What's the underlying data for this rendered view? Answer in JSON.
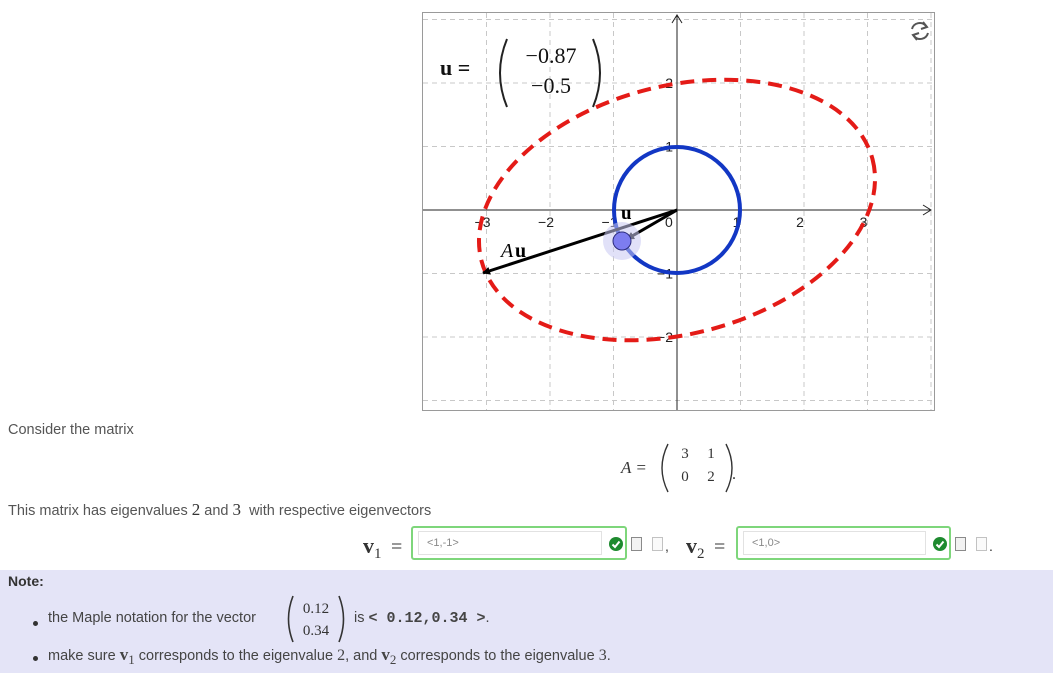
{
  "graph": {
    "axis_x_ticks": [
      "−3",
      "−2",
      "−1",
      "0",
      "1",
      "2",
      "3"
    ],
    "axis_y_ticks": [
      "2",
      "1",
      "−1",
      "−2"
    ],
    "u_label": "u =",
    "u_vector": [
      "−0.87",
      "−0.5"
    ],
    "vector_u_label": "u",
    "vector_Au_label": "Au",
    "colors": {
      "ellipse": "#e41b17",
      "circle": "#1237c4",
      "handle": "#7d7df0",
      "grid": "#c8c8c8"
    }
  },
  "content": {
    "consider_text": "Consider the matrix",
    "matrix_label": "A =",
    "matrix": [
      [
        "3",
        "1"
      ],
      [
        "0",
        "2"
      ]
    ],
    "matrix_suffix": ".",
    "eigen_text_1": "This matrix has eigenvalues",
    "eigen_val_1": "2",
    "eigen_and": "and",
    "eigen_val_2": "3",
    "eigen_text_2": "with respective eigenvectors",
    "v1_label": "v",
    "v1_sub": "1",
    "v1_eq": "=",
    "v1_value": "<1,-1>",
    "separator": ",",
    "v2_label": "v",
    "v2_sub": "2",
    "v2_eq": "=",
    "v2_value": "<1,0>",
    "trailing_dot": "."
  },
  "note": {
    "title": "Note:",
    "item1_text_a": "the Maple notation for the vector",
    "item1_vector": [
      "0.12",
      "0.34"
    ],
    "item1_text_b": "is",
    "item1_code": "< 0.12,0.34 >",
    "item1_text_c": ".",
    "item2_text_a": "make sure",
    "item2_v1": "v",
    "item2_v1_sub": "1",
    "item2_text_b": "corresponds to the eigenvalue",
    "item2_val1": "2",
    "item2_text_c": ", and",
    "item2_v2": "v",
    "item2_v2_sub": "2",
    "item2_text_d": "corresponds to the eigenvalue",
    "item2_val2": "3",
    "item2_text_e": "."
  }
}
